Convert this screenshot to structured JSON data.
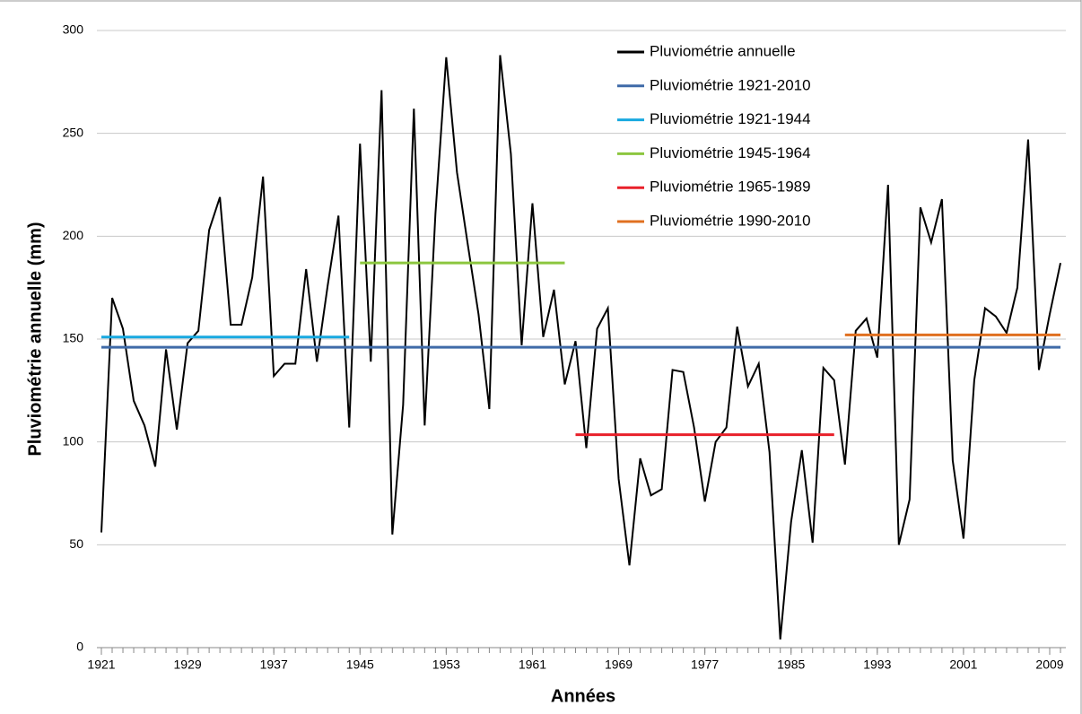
{
  "chart_data": {
    "type": "line",
    "x_label": "Années",
    "y_label": "Pluviométrie annuelle (mm)",
    "x": [
      1921,
      1922,
      1923,
      1924,
      1925,
      1926,
      1927,
      1928,
      1929,
      1930,
      1931,
      1932,
      1933,
      1934,
      1935,
      1936,
      1937,
      1938,
      1939,
      1940,
      1941,
      1942,
      1943,
      1944,
      1945,
      1946,
      1947,
      1948,
      1949,
      1950,
      1951,
      1952,
      1953,
      1954,
      1955,
      1956,
      1957,
      1958,
      1959,
      1960,
      1961,
      1962,
      1963,
      1964,
      1965,
      1966,
      1967,
      1968,
      1969,
      1970,
      1971,
      1972,
      1973,
      1974,
      1975,
      1976,
      1977,
      1978,
      1979,
      1980,
      1981,
      1982,
      1983,
      1984,
      1985,
      1986,
      1987,
      1988,
      1989,
      1990,
      1991,
      1992,
      1993,
      1994,
      1995,
      1996,
      1997,
      1998,
      1999,
      2000,
      2001,
      2002,
      2003,
      2004,
      2005,
      2006,
      2007,
      2008,
      2009,
      2010
    ],
    "series": [
      {
        "name": "Pluviométrie annuelle",
        "color": "#000000",
        "values": [
          56,
          170,
          155,
          120,
          108,
          88,
          145,
          106,
          148,
          154,
          203,
          219,
          157,
          157,
          180,
          229,
          132,
          138,
          138,
          184,
          139,
          176,
          210,
          107,
          245,
          139,
          271,
          55,
          118,
          262,
          108,
          211,
          287,
          231,
          196,
          162,
          116,
          288,
          240,
          147,
          216,
          151,
          174,
          128,
          149,
          97,
          155,
          165,
          82,
          40,
          92,
          74,
          77,
          135,
          134,
          107,
          71,
          100,
          107,
          156,
          127,
          138,
          95,
          4,
          61,
          96,
          51,
          136,
          130,
          89,
          154,
          160,
          141,
          225,
          50,
          72,
          214,
          197,
          218,
          91,
          53,
          130,
          165,
          161,
          153,
          175,
          247,
          135,
          162,
          187
        ]
      },
      {
        "name": "Pluviométrie 1921-2010",
        "color": "#3f6aa8",
        "x": [
          1921,
          2010
        ],
        "values": [
          146,
          146
        ]
      },
      {
        "name": "Pluviométrie 1921-1944",
        "color": "#19a9e0",
        "x": [
          1921,
          1944
        ],
        "values": [
          151,
          151
        ]
      },
      {
        "name": "Pluviométrie 1945-1964",
        "color": "#8cc63f",
        "x": [
          1945,
          1964
        ],
        "values": [
          187,
          187
        ]
      },
      {
        "name": "Pluviométrie 1965-1989",
        "color": "#e8202a",
        "x": [
          1965,
          1989
        ],
        "values": [
          103.5,
          103.5
        ]
      },
      {
        "name": "Pluviométrie 1990-2010",
        "color": "#e07020",
        "x": [
          1990,
          2010
        ],
        "values": [
          152,
          152
        ]
      }
    ],
    "xlim": [
      1921,
      2010
    ],
    "xticks": [
      1921,
      1929,
      1937,
      1945,
      1953,
      1961,
      1969,
      1977,
      1985,
      1993,
      2001,
      2009
    ],
    "ylim": [
      0,
      300
    ],
    "yticks": [
      0,
      50,
      100,
      150,
      200,
      250,
      300
    ],
    "grid": true,
    "legend": "top-right"
  }
}
